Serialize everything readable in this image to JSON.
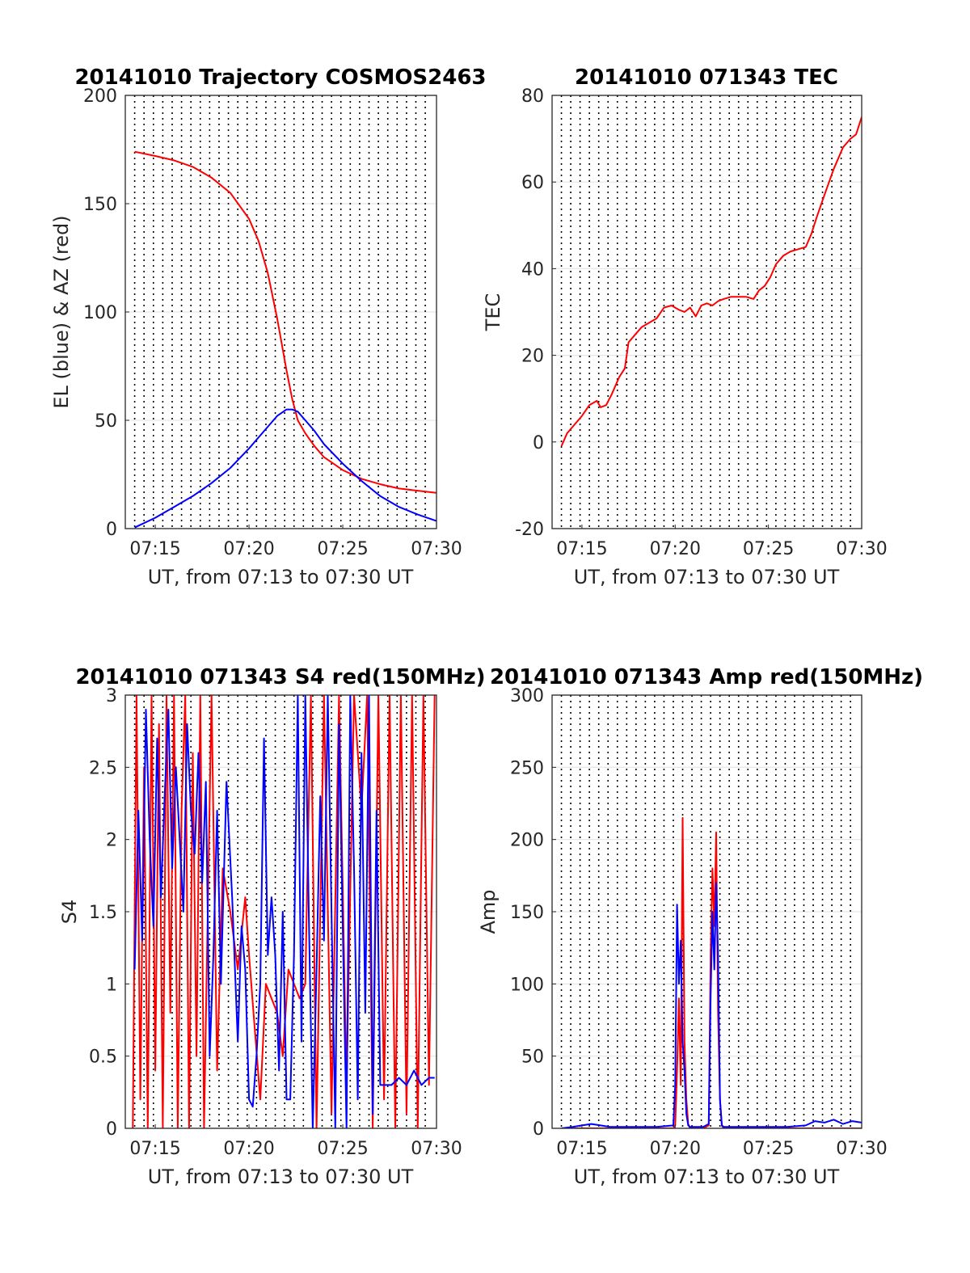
{
  "x_axis": {
    "ticks": [
      "07:15",
      "07:20",
      "07:25",
      "07:30"
    ],
    "tick_minutes": [
      15,
      20,
      25,
      30
    ],
    "range_minutes": [
      13.4,
      30
    ],
    "label": "UT, from 07:13 to 07:30 UT",
    "minor_grid_minutes": [
      13.9,
      14.4,
      14.9,
      15.4,
      15.9,
      16.4,
      16.9,
      17.4,
      17.9,
      18.4,
      18.9,
      19.4,
      19.9,
      20.4,
      20.9,
      21.4,
      21.9,
      22.4,
      22.9,
      23.4,
      23.9,
      24.4,
      24.9,
      25.4,
      25.9,
      26.4,
      26.9,
      27.4,
      27.9,
      28.4,
      28.9,
      29.4
    ]
  },
  "colors": {
    "red": "#ff0000",
    "blue": "#0000ff",
    "grid": "#e6e6e6"
  },
  "chart_data": [
    {
      "id": "trajectory",
      "type": "line",
      "title": "20141010 Trajectory COSMOS2463",
      "xlabel": "UT, from 07:13 to 07:30 UT",
      "ylabel": "EL (blue) & AZ (red)",
      "ylim": [
        0,
        200
      ],
      "yticks": [
        "0",
        "50",
        "100",
        "150",
        "200"
      ],
      "grid": true,
      "series": [
        {
          "color": "red",
          "x": [
            13.9,
            15,
            16,
            17,
            18,
            19,
            20,
            20.5,
            21,
            21.5,
            22,
            22.3,
            22.6,
            23,
            23.5,
            24,
            25,
            26,
            27,
            28,
            29,
            30
          ],
          "y": [
            174,
            172,
            170,
            167,
            162,
            155,
            143,
            133,
            118,
            97,
            73,
            60,
            50,
            44,
            38,
            33,
            27,
            23,
            20.5,
            18.5,
            17.5,
            16.5
          ]
        },
        {
          "color": "blue",
          "x": [
            13.9,
            15,
            16,
            17,
            18,
            19,
            20,
            20.5,
            21,
            21.5,
            22,
            22.3,
            22.6,
            23,
            23.5,
            24,
            25,
            26,
            27,
            28,
            29,
            30
          ],
          "y": [
            0.5,
            5,
            10,
            15,
            21,
            28,
            37,
            42,
            47,
            52,
            55,
            55,
            54,
            50,
            45,
            39,
            30,
            22,
            15,
            10,
            6.5,
            3.5
          ]
        }
      ]
    },
    {
      "id": "tec",
      "type": "line",
      "title": "20141010 071343 TEC",
      "xlabel": "UT, from 07:13 to 07:30 UT",
      "ylabel": "TEC",
      "ylim": [
        -20,
        80
      ],
      "yticks": [
        "-20",
        "0",
        "20",
        "40",
        "60",
        "80"
      ],
      "grid": true,
      "series": [
        {
          "color": "red",
          "x": [
            13.9,
            14.2,
            14.6,
            15,
            15.4,
            15.8,
            16,
            16.3,
            16.6,
            17,
            17.3,
            17.5,
            17.9,
            18.2,
            18.6,
            19,
            19.4,
            19.8,
            20.2,
            20.5,
            20.8,
            21.1,
            21.4,
            21.7,
            22,
            22.3,
            22.6,
            23,
            23.4,
            23.8,
            24.2,
            24.5,
            24.8,
            25.1,
            25.4,
            25.8,
            26.2,
            26.6,
            27,
            27.3,
            27.6,
            28,
            28.5,
            29,
            29.4,
            29.7,
            30
          ],
          "y": [
            -1,
            2,
            4,
            6,
            8.5,
            9.5,
            8,
            8.5,
            11,
            15,
            17,
            23,
            25,
            26.5,
            27.5,
            28.5,
            31,
            31.5,
            30.5,
            30,
            31,
            29,
            31.5,
            32,
            31.5,
            32.5,
            33,
            33.5,
            33.5,
            33.5,
            33,
            35,
            36,
            38,
            41,
            43,
            44,
            44.5,
            45,
            48,
            52,
            57,
            63,
            68,
            70,
            71,
            75
          ]
        }
      ]
    },
    {
      "id": "s4",
      "type": "line",
      "title": "20141010 071343 S4 red(150MHz)",
      "xlabel": "UT, from 07:13 to 07:30 UT",
      "ylabel": "S4",
      "ylim": [
        0,
        3
      ],
      "yticks": [
        "0",
        "0.5",
        "1",
        "1.5",
        "2",
        "2.5",
        "3"
      ],
      "grid": true,
      "series": [
        {
          "color": "red",
          "x": [
            13.8,
            14,
            14.2,
            14.4,
            14.6,
            14.8,
            15,
            15.2,
            15.4,
            15.6,
            15.8,
            16,
            16.2,
            16.4,
            16.6,
            16.8,
            17,
            17.2,
            17.4,
            17.6,
            17.8,
            18,
            18.3,
            18.6,
            19,
            19.4,
            19.8,
            20,
            20.3,
            20.6,
            20.9,
            21.2,
            21.5,
            21.8,
            22.1,
            22.4,
            22.7,
            23,
            23.3,
            23.6,
            24,
            24.4,
            24.8,
            25.2,
            25.6,
            26,
            26.3,
            26.6,
            26.9,
            27.2,
            27.5,
            27.8,
            28.1,
            28.4,
            28.7,
            29,
            29.3,
            29.6,
            29.9
          ],
          "y": [
            0,
            3,
            0.2,
            2.5,
            0,
            3,
            0.4,
            2.8,
            0,
            3,
            0.8,
            3,
            0,
            2.2,
            3,
            0,
            2.6,
            0.5,
            3,
            0,
            1.5,
            3,
            0.4,
            1.8,
            1.5,
            1.1,
            1.6,
            1.2,
            0.7,
            0.2,
            1.0,
            0.9,
            0.8,
            0.5,
            1.1,
            1.0,
            0.9,
            1.0,
            3,
            0,
            3,
            0.1,
            3,
            0.3,
            3,
            2.2,
            3,
            0,
            3,
            0.2,
            3,
            0,
            3,
            0.1,
            3,
            0,
            3,
            0.3,
            3
          ]
        },
        {
          "color": "blue",
          "x": [
            13.9,
            14.1,
            14.3,
            14.5,
            14.7,
            14.9,
            15.1,
            15.3,
            15.5,
            15.7,
            15.9,
            16.1,
            16.3,
            16.5,
            16.7,
            16.9,
            17.1,
            17.3,
            17.5,
            17.7,
            17.9,
            18.1,
            18.3,
            18.5,
            18.8,
            19.1,
            19.4,
            19.6,
            19.8,
            20,
            20.2,
            20.4,
            20.6,
            20.8,
            21,
            21.2,
            21.4,
            21.6,
            21.8,
            22,
            22.2,
            22.4,
            22.6,
            22.8,
            23,
            23.2,
            23.4,
            23.6,
            23.8,
            24,
            24.2,
            24.4,
            24.6,
            24.8,
            25,
            25.2,
            25.4,
            25.6,
            25.8,
            26,
            26.2,
            26.4,
            26.6,
            26.8,
            27,
            27.3,
            27.6,
            28,
            28.4,
            28.8,
            29.2,
            29.6,
            29.9
          ],
          "y": [
            1.1,
            2.2,
            1.3,
            2.9,
            2.0,
            1.4,
            2.7,
            1.6,
            2.3,
            2.9,
            1.8,
            2.5,
            2.0,
            1.5,
            2.8,
            2.2,
            1.9,
            2.6,
            1.7,
            2.4,
            0.5,
            1.2,
            2.2,
            1.0,
            2.4,
            1.6,
            0.6,
            1.4,
            1.1,
            0.2,
            0.15,
            0.5,
            1.0,
            2.7,
            1.2,
            1.6,
            1.2,
            0.4,
            1.5,
            0.2,
            0.2,
            1.2,
            3,
            0.6,
            3,
            1.4,
            0.0,
            1.1,
            2.3,
            1.3,
            3,
            1.5,
            0.0,
            2.8,
            1.4,
            0.0,
            3,
            1.8,
            0.2,
            2.6,
            0.8,
            3,
            0.1,
            2.2,
            0.3,
            0.3,
            0.3,
            0.35,
            0.3,
            0.4,
            0.3,
            0.35,
            0.35
          ]
        }
      ]
    },
    {
      "id": "amp",
      "type": "line",
      "title": "20141010 071343 Amp red(150MHz)",
      "xlabel": "UT, from 07:13 to 07:30 UT",
      "ylabel": "Amp",
      "ylim": [
        0,
        300
      ],
      "yticks": [
        "0",
        "50",
        "100",
        "150",
        "200",
        "250",
        "300"
      ],
      "grid": true,
      "series": [
        {
          "color": "red",
          "x": [
            13.9,
            15,
            16,
            17,
            18,
            19,
            19.9,
            20,
            20.1,
            20.2,
            20.3,
            20.4,
            20.5,
            20.6,
            20.7,
            20.8,
            21,
            21.5,
            21.8,
            21.9,
            22,
            22.1,
            22.2,
            22.3,
            22.4,
            22.5,
            22.6,
            23,
            24,
            25,
            26,
            27,
            28,
            29,
            30
          ],
          "y": [
            0,
            0,
            0,
            0,
            0,
            0,
            0,
            2,
            40,
            90,
            30,
            215,
            60,
            20,
            3,
            0,
            0,
            0,
            2,
            120,
            180,
            140,
            205,
            80,
            20,
            2,
            0,
            0,
            0,
            0,
            0,
            0,
            0,
            0,
            0
          ]
        },
        {
          "color": "blue",
          "x": [
            13.9,
            14.5,
            15,
            15.5,
            16,
            16.5,
            17,
            18,
            19,
            19.9,
            20,
            20.1,
            20.2,
            20.3,
            20.4,
            20.5,
            20.6,
            20.7,
            20.8,
            21,
            21.5,
            21.8,
            21.9,
            22,
            22.1,
            22.2,
            22.3,
            22.4,
            22.5,
            22.6,
            23,
            24,
            25,
            26,
            27,
            27.5,
            28,
            28.5,
            29,
            29.5,
            30
          ],
          "y": [
            0,
            1,
            2,
            3,
            2,
            1,
            1,
            1,
            1,
            2,
            30,
            155,
            100,
            130,
            60,
            40,
            10,
            2,
            1,
            1,
            1,
            3,
            90,
            150,
            110,
            170,
            120,
            20,
            2,
            1,
            1,
            1,
            1,
            1,
            2,
            5,
            4,
            6,
            3,
            5,
            4
          ]
        }
      ]
    }
  ]
}
